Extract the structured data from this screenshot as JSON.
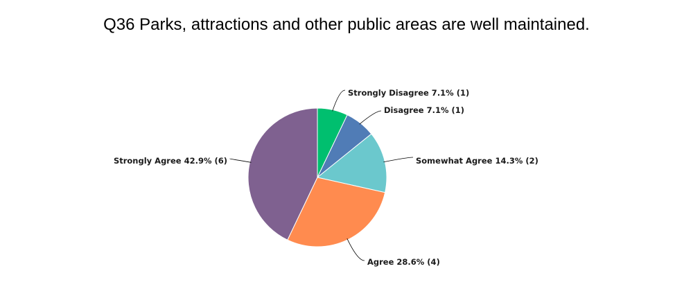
{
  "chart_data": {
    "type": "pie",
    "title": "Q36 Parks, attractions and other public areas are well maintained.",
    "slices": [
      {
        "label": "Strongly Disagree 7.1% (1)",
        "category": "Strongly Disagree",
        "percent": 7.1,
        "count": 1,
        "color": "#00bf6f"
      },
      {
        "label": "Disagree 7.1% (1)",
        "category": "Disagree",
        "percent": 7.1,
        "count": 1,
        "color": "#507cb6"
      },
      {
        "label": "Somewhat Agree 14.3% (2)",
        "category": "Somewhat Agree",
        "percent": 14.3,
        "count": 2,
        "color": "#6bc8cd"
      },
      {
        "label": "Agree 28.6% (4)",
        "category": "Agree",
        "percent": 28.6,
        "count": 4,
        "color": "#ff8b4f"
      },
      {
        "label": "Strongly Agree 42.9% (6)",
        "category": "Strongly Agree",
        "percent": 42.9,
        "count": 6,
        "color": "#7f6190"
      }
    ],
    "legend": "none"
  }
}
